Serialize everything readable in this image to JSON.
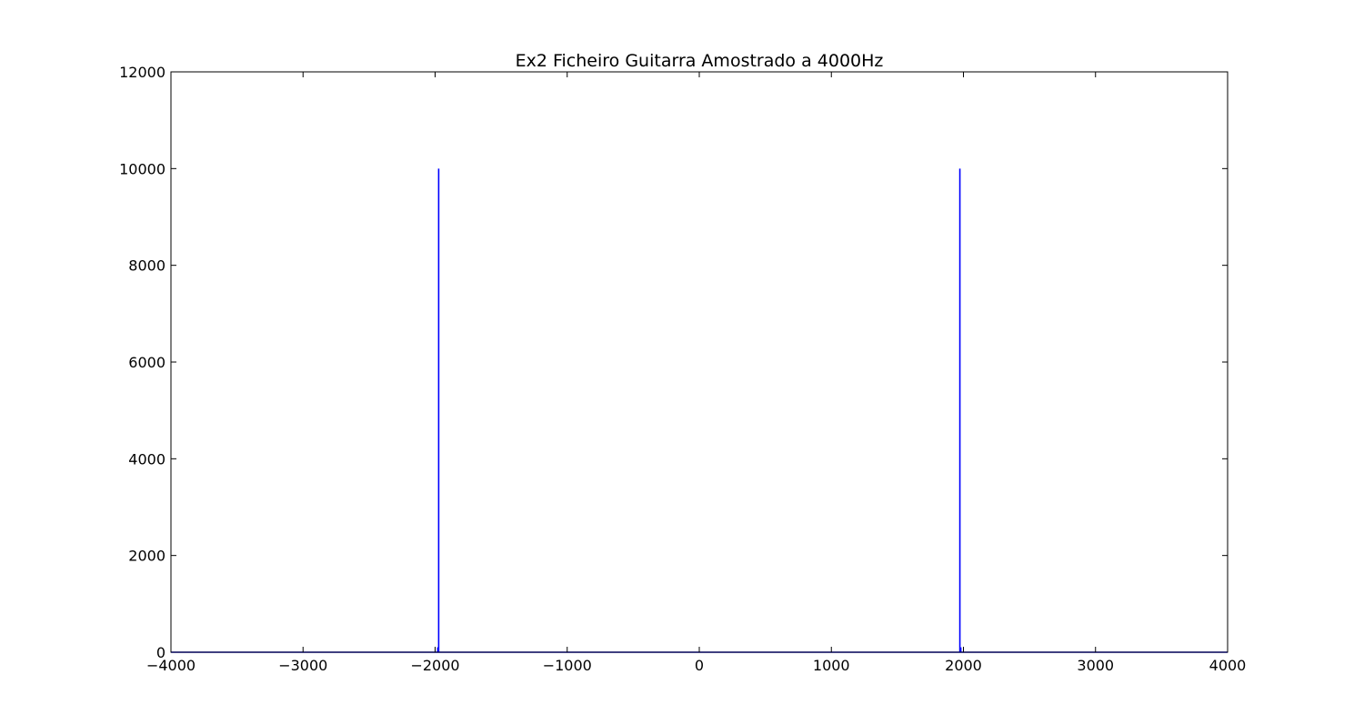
{
  "chart_data": {
    "type": "line",
    "title": "Ex2 Ficheiro Guitarra Amostrado a 4000Hz",
    "xlabel": "",
    "ylabel": "",
    "xlim": [
      -4000,
      4000
    ],
    "ylim": [
      0,
      12000
    ],
    "xticks": [
      -4000,
      -3000,
      -2000,
      -1000,
      0,
      1000,
      2000,
      3000,
      4000
    ],
    "yticks": [
      0,
      2000,
      4000,
      6000,
      8000,
      10000,
      12000
    ],
    "xtick_labels": [
      "−4000",
      "−3000",
      "−2000",
      "−1000",
      "0",
      "1000",
      "2000",
      "3000",
      "4000"
    ],
    "ytick_labels": [
      "0",
      "2000",
      "4000",
      "6000",
      "8000",
      "10000",
      "12000"
    ],
    "grid": false,
    "series": [
      {
        "color": "#0000ff",
        "x": [
          -4000,
          -1980,
          -1980,
          -1980,
          -1973,
          -1973,
          -1973,
          1973,
          1973,
          1973,
          1980,
          1980,
          1980,
          4000
        ],
        "y": [
          0,
          0,
          100,
          0,
          0,
          10000,
          0,
          0,
          10000,
          0,
          0,
          100,
          0,
          0
        ]
      }
    ]
  }
}
